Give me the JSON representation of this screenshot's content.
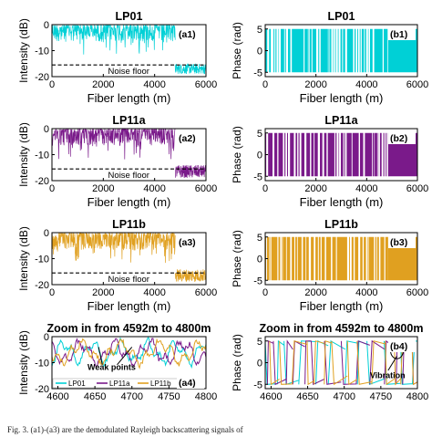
{
  "caption": "Fig. 3. (a1)-(a3) are the demodulated Rayleigh backscattering signals of",
  "chart_data": [
    {
      "type": "line",
      "panel": "a1",
      "title": "LP01",
      "tag": "(a1)",
      "xlabel": "Fiber length (m)",
      "ylabel": "Intensity (dB)",
      "xlim": [
        0,
        6000
      ],
      "ylim": [
        -20,
        0
      ],
      "xticks": [
        "0",
        "2000",
        "4000",
        "6000"
      ],
      "yticks": [
        "0",
        "-10",
        "-20"
      ],
      "color": "#00d0d6",
      "series": [
        {
          "x": [
            0,
            4800
          ],
          "y_mean": -4,
          "y_min": -12,
          "y_max": 0
        },
        {
          "x": [
            4800,
            6000
          ],
          "y_mean": -17.5,
          "y_min": -19,
          "y_max": -15
        }
      ],
      "noise_floor": -15.5,
      "annotation": "Noise floor"
    },
    {
      "type": "line",
      "panel": "b1",
      "title": "LP01",
      "tag": "(b1)",
      "xlabel": "Fiber length (m)",
      "ylabel": "Phase (rad)",
      "xlim": [
        0,
        6000
      ],
      "ylim": [
        -6,
        6
      ],
      "xticks": [
        "0",
        "2000",
        "4000",
        "6000"
      ],
      "yticks": [
        "5",
        "0",
        "-5"
      ],
      "color": "#00d0d6",
      "series": [
        {
          "x": [
            0,
            6000
          ],
          "y_min": -5,
          "y_max": 5
        }
      ]
    },
    {
      "type": "line",
      "panel": "a2",
      "title": "LP11a",
      "tag": "(a2)",
      "xlabel": "Fiber length (m)",
      "ylabel": "Intensity (dB)",
      "xlim": [
        0,
        6000
      ],
      "ylim": [
        -20,
        0
      ],
      "xticks": [
        "0",
        "2000",
        "4000",
        "6000"
      ],
      "yticks": [
        "0",
        "-10",
        "-20"
      ],
      "color": "#7a1a8a",
      "series": [
        {
          "x": [
            0,
            4800
          ],
          "y_mean": -4,
          "y_min": -12,
          "y_max": 0
        },
        {
          "x": [
            4800,
            6000
          ],
          "y_mean": -16.5,
          "y_min": -19,
          "y_max": -14
        }
      ],
      "noise_floor": -15.5,
      "annotation": "Noise floor"
    },
    {
      "type": "line",
      "panel": "b2",
      "title": "LP11a",
      "tag": "(b2)",
      "xlabel": "Fiber length (m)",
      "ylabel": "Phase (rad)",
      "xlim": [
        0,
        6000
      ],
      "ylim": [
        -6,
        6
      ],
      "xticks": [
        "0",
        "2000",
        "4000",
        "6000"
      ],
      "yticks": [
        "5",
        "0",
        "-5"
      ],
      "color": "#7a1a8a",
      "series": [
        {
          "x": [
            0,
            6000
          ],
          "y_min": -5,
          "y_max": 5
        }
      ]
    },
    {
      "type": "line",
      "panel": "a3",
      "title": "LP11b",
      "tag": "(a3)",
      "xlabel": "Fiber length (m)",
      "ylabel": "Intensity (dB)",
      "xlim": [
        0,
        6000
      ],
      "ylim": [
        -20,
        0
      ],
      "xticks": [
        "0",
        "2000",
        "4000",
        "6000"
      ],
      "yticks": [
        "0",
        "-10",
        "-20"
      ],
      "color": "#e0a020",
      "series": [
        {
          "x": [
            0,
            4800
          ],
          "y_mean": -3,
          "y_min": -12,
          "y_max": 0
        },
        {
          "x": [
            4800,
            6000
          ],
          "y_mean": -16.5,
          "y_min": -19,
          "y_max": -14
        }
      ],
      "noise_floor": -15.5,
      "annotation": "Noise floor"
    },
    {
      "type": "line",
      "panel": "b3",
      "title": "LP11b",
      "tag": "(b3)",
      "xlabel": "Fiber length (m)",
      "ylabel": "Phase (rad)",
      "xlim": [
        0,
        6000
      ],
      "ylim": [
        -6,
        6
      ],
      "xticks": [
        "0",
        "2000",
        "4000",
        "6000"
      ],
      "yticks": [
        "5",
        "0",
        "-5"
      ],
      "color": "#e0a020",
      "series": [
        {
          "x": [
            0,
            6000
          ],
          "y_min": -5,
          "y_max": 5
        }
      ]
    },
    {
      "type": "line",
      "panel": "a4",
      "title": "Zoom in from 4592m to 4800m",
      "tag": "(a4)",
      "xlabel": "",
      "ylabel": "Intensity (dB)",
      "xlim": [
        4592,
        4800
      ],
      "ylim": [
        -20,
        0
      ],
      "xticks": [
        "4600",
        "4650",
        "4700",
        "4750",
        "4800"
      ],
      "yticks": [
        "0",
        "-10",
        "-20"
      ],
      "legend": {
        "placement": "bottom-left",
        "entries": [
          {
            "name": "LP01",
            "color": "#00d0d6"
          },
          {
            "name": "LP11a",
            "color": "#7a1a8a"
          },
          {
            "name": "LP11b",
            "color": "#e0a020"
          }
        ]
      },
      "annotation": "Weak points"
    },
    {
      "type": "line",
      "panel": "b4",
      "title": "Zoom in from 4592m to 4800m",
      "tag": "(b4)",
      "xlabel": "",
      "ylabel": "Phase (rad)",
      "xlim": [
        4592,
        4800
      ],
      "ylim": [
        -6,
        6
      ],
      "xticks": [
        "4600",
        "4650",
        "4700",
        "4750",
        "4800"
      ],
      "yticks": [
        "5",
        "0",
        "-5"
      ],
      "annotation": "Vibration"
    }
  ]
}
